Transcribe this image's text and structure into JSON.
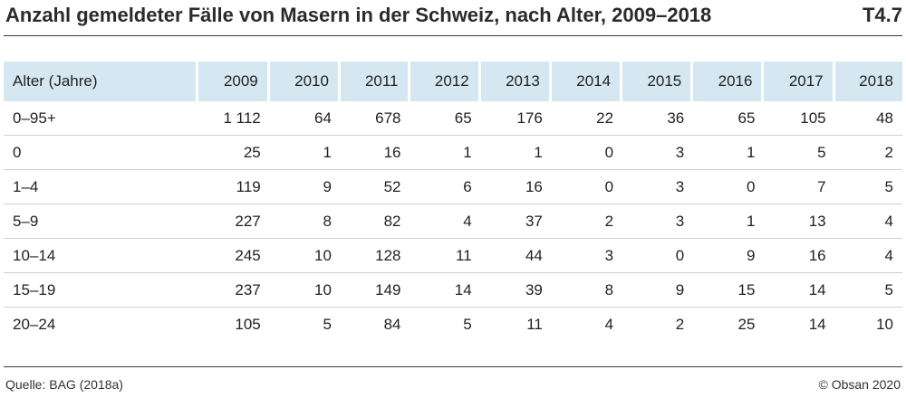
{
  "title": "Anzahl gemeldeter Fälle von Masern in der Schweiz, nach Alter, 2009–2018",
  "table_id": "T4.7",
  "table": {
    "headers": [
      "Alter (Jahre)",
      "2009",
      "2010",
      "2011",
      "2012",
      "2013",
      "2014",
      "2015",
      "2016",
      "2017",
      "2018"
    ],
    "rows": [
      [
        "0–95+",
        "1 112",
        "64",
        "678",
        "65",
        "176",
        "22",
        "36",
        "65",
        "105",
        "48"
      ],
      [
        "0",
        "25",
        "1",
        "16",
        "1",
        "1",
        "0",
        "3",
        "1",
        "5",
        "2"
      ],
      [
        "1–4",
        "119",
        "9",
        "52",
        "6",
        "16",
        "0",
        "3",
        "0",
        "7",
        "5"
      ],
      [
        "5–9",
        "227",
        "8",
        "82",
        "4",
        "37",
        "2",
        "3",
        "1",
        "13",
        "4"
      ],
      [
        "10–14",
        "245",
        "10",
        "128",
        "11",
        "44",
        "3",
        "0",
        "9",
        "16",
        "4"
      ],
      [
        "15–19",
        "237",
        "10",
        "149",
        "14",
        "39",
        "8",
        "9",
        "15",
        "14",
        "5"
      ],
      [
        "20–24",
        "105",
        "5",
        "84",
        "5",
        "11",
        "4",
        "2",
        "25",
        "14",
        "10"
      ]
    ]
  },
  "footer": {
    "source": "Quelle: BAG (2018a)",
    "copyright": "© Obsan 2020"
  }
}
